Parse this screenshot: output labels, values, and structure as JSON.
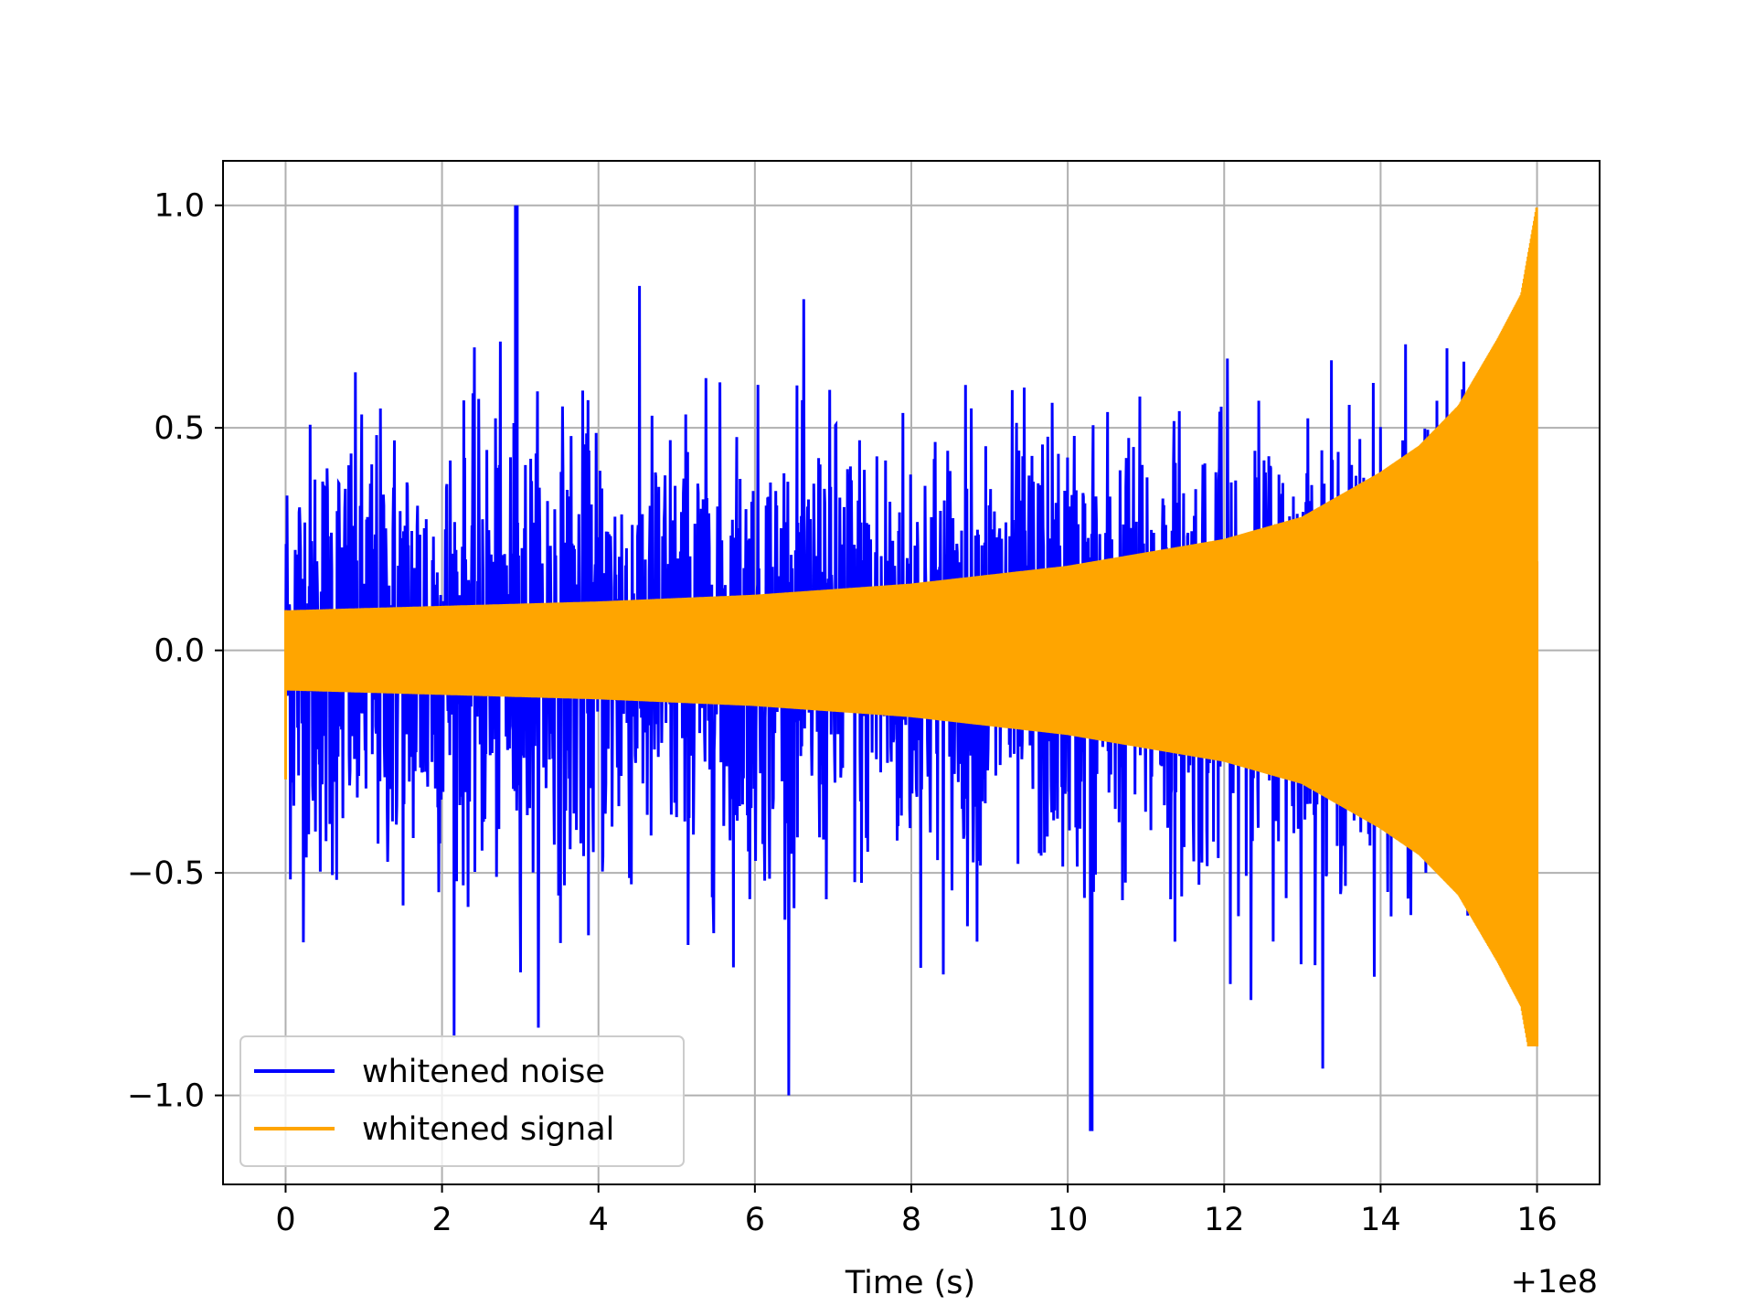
{
  "chart_data": {
    "type": "line",
    "xlabel": "Time (s)",
    "ylabel": "",
    "x_offset_label": "+1e8",
    "xlim": [
      -0.8,
      16.8
    ],
    "ylim": [
      -1.2,
      1.1
    ],
    "xticks": [
      0,
      2,
      4,
      6,
      8,
      10,
      12,
      14,
      16
    ],
    "xtick_labels": [
      "0",
      "2",
      "4",
      "6",
      "8",
      "10",
      "12",
      "14",
      "16"
    ],
    "yticks": [
      1.0,
      0.5,
      0.0,
      -0.5,
      -1.0
    ],
    "ytick_labels": [
      "1.0",
      "0.5",
      "0.0",
      "−0.5",
      "−1.0"
    ],
    "grid": true,
    "legend_position": "lower-left",
    "series": [
      {
        "name": "whitened noise",
        "color": "#0000ff",
        "x_range": [
          0,
          16
        ],
        "y_typical_range": [
          -0.5,
          0.5
        ],
        "y_max": 1.0,
        "y_min": -1.08
      },
      {
        "name": "whitened signal",
        "color": "#ffa500",
        "x": [
          0,
          2,
          4,
          6,
          8,
          10,
          12,
          13,
          14,
          14.5,
          15,
          15.5,
          15.8,
          16
        ],
        "y_envelope": [
          0.09,
          0.1,
          0.11,
          0.125,
          0.15,
          0.19,
          0.25,
          0.3,
          0.4,
          0.46,
          0.55,
          0.7,
          0.8,
          1.0
        ],
        "y_min": -0.89
      }
    ]
  }
}
